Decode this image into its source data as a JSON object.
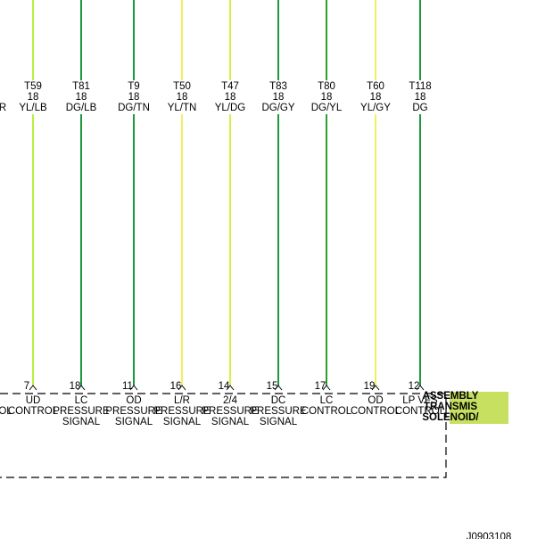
{
  "left_fragments": {
    "wire_color": "R",
    "pin_function": "OL"
  },
  "wires": [
    {
      "circuit": "T59",
      "gauge": "18",
      "color_code": "YL/LB",
      "color": "#b8f040",
      "pin": "7",
      "function": [
        "UD",
        "CONTROL"
      ]
    },
    {
      "circuit": "T81",
      "gauge": "18",
      "color_code": "DG/LB",
      "color": "#1a9a3a",
      "pin": "18",
      "function": [
        "LC",
        "PRESSURE",
        "SIGNAL"
      ]
    },
    {
      "circuit": "T9",
      "gauge": "18",
      "color_code": "DG/TN",
      "color": "#1a9a3a",
      "pin": "11",
      "function": [
        "OD",
        "PRESSURE",
        "SIGNAL"
      ]
    },
    {
      "circuit": "T50",
      "gauge": "18",
      "color_code": "YL/TN",
      "color": "#f0f060",
      "pin": "16",
      "function": [
        "L/R",
        "PRESSURE",
        "SIGNAL"
      ]
    },
    {
      "circuit": "T47",
      "gauge": "18",
      "color_code": "YL/DG",
      "color": "#d8f040",
      "pin": "14",
      "function": [
        "2/4",
        "PRESSURE",
        "SIGNAL"
      ]
    },
    {
      "circuit": "T83",
      "gauge": "18",
      "color_code": "DG/GY",
      "color": "#1a9a3a",
      "pin": "15",
      "function": [
        "DC",
        "PRESSURE",
        "SIGNAL"
      ]
    },
    {
      "circuit": "T80",
      "gauge": "18",
      "color_code": "DG/YL",
      "color": "#2aa030",
      "pin": "17",
      "function": [
        "LC",
        "CONTROL"
      ]
    },
    {
      "circuit": "T60",
      "gauge": "18",
      "color_code": "YL/GY",
      "color": "#f0f060",
      "pin": "19",
      "function": [
        "OD",
        "CONTROL"
      ]
    },
    {
      "circuit": "T118",
      "gauge": "18",
      "color_code": "DG",
      "color": "#1a9a3a",
      "pin": "12",
      "function": [
        "LP VFS",
        "CONTROL"
      ]
    }
  ],
  "component": {
    "lines": [
      "ASSEMBLY",
      "TRANSMIS",
      "SOLENOID/"
    ]
  },
  "figure_id": "J0903108"
}
